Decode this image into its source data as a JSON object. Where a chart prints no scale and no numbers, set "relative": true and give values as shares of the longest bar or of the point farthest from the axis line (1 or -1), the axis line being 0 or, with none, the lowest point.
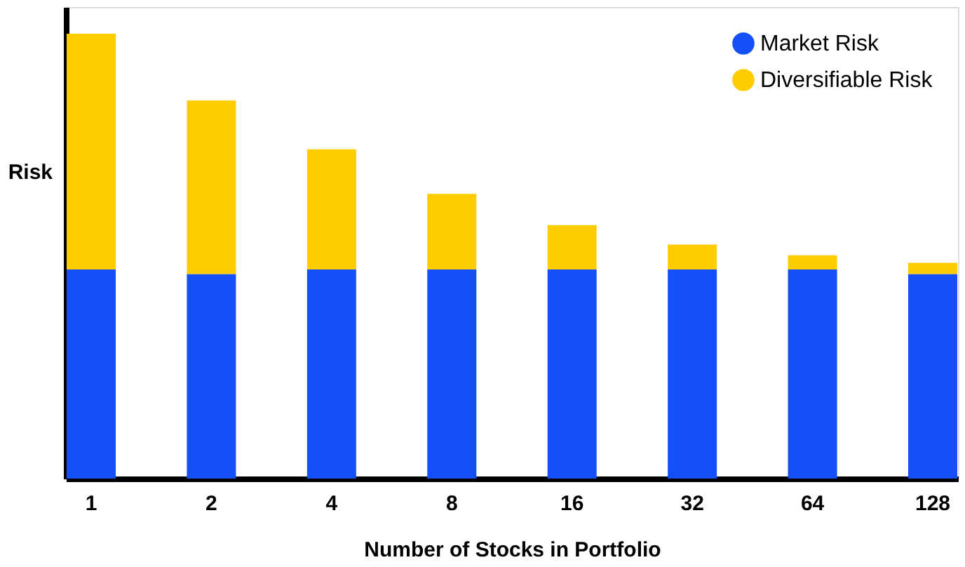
{
  "chart_data": {
    "type": "bar",
    "stacked": true,
    "relative": true,
    "xlabel": "Number of Stocks in Portfolio",
    "ylabel": "Risk",
    "categories": [
      "1",
      "2",
      "4",
      "8",
      "16",
      "32",
      "64",
      "128"
    ],
    "series": [
      {
        "name": "Market Risk",
        "color": "#1450f5",
        "values": [
          0.47,
          0.46,
          0.47,
          0.47,
          0.47,
          0.47,
          0.47,
          0.46
        ]
      },
      {
        "name": "Diversifiable Risk",
        "color": "#ffcc00",
        "values": [
          0.53,
          0.39,
          0.27,
          0.17,
          0.1,
          0.056,
          0.032,
          0.025
        ]
      }
    ],
    "legend": "top right",
    "grid": false
  }
}
